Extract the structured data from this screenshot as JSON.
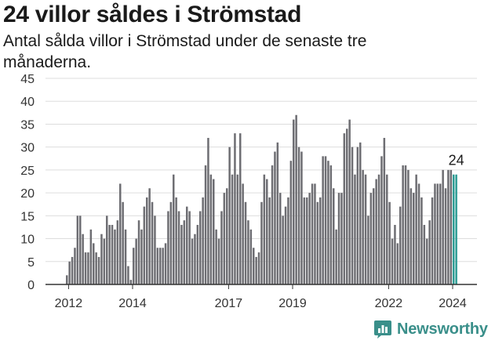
{
  "chart_data": {
    "type": "bar",
    "title": "24 villor såldes i Strömstad",
    "subtitle": "Antal sålda villor i Strömstad under de senaste tre månaderna.",
    "annotation": "24",
    "y_ticks": [
      0,
      5,
      10,
      15,
      20,
      25,
      30,
      35,
      40,
      45
    ],
    "ylim": [
      0,
      45
    ],
    "x_ticks": [
      {
        "label": "2012",
        "month_index": 1
      },
      {
        "label": "2014",
        "month_index": 25
      },
      {
        "label": "2017",
        "month_index": 61
      },
      {
        "label": "2019",
        "month_index": 85
      },
      {
        "label": "2022",
        "month_index": 121
      },
      {
        "label": "2024",
        "month_index": 145
      }
    ],
    "grid": true,
    "colors": {
      "bar": "#6e6e73",
      "highlight": "#2e9c94"
    },
    "highlight_last": 2,
    "values": [
      2,
      5,
      6,
      8,
      15,
      15,
      11,
      7,
      7,
      12,
      9,
      7,
      6,
      11,
      10,
      15,
      13,
      13,
      12,
      14,
      22,
      18,
      12,
      4,
      1,
      8,
      10,
      14,
      12,
      17,
      19,
      21,
      18,
      15,
      8,
      8,
      8,
      9,
      16,
      18,
      24,
      19,
      16,
      13,
      14,
      17,
      16,
      10,
      11,
      13,
      16,
      19,
      26,
      32,
      24,
      23,
      12,
      10,
      16,
      20,
      21,
      30,
      24,
      33,
      24,
      33,
      22,
      18,
      14,
      12,
      8,
      6,
      7,
      18,
      24,
      23,
      19,
      26,
      29,
      31,
      20,
      15,
      17,
      19,
      27,
      36,
      37,
      30,
      29,
      19,
      19,
      20,
      22,
      22,
      18,
      19,
      28,
      28,
      27,
      26,
      21,
      12,
      20,
      20,
      33,
      34,
      36,
      30,
      24,
      30,
      31,
      25,
      24,
      15,
      20,
      21,
      23,
      24,
      28,
      32,
      24,
      18,
      10,
      13,
      9,
      17,
      26,
      26,
      25,
      21,
      20,
      24,
      22,
      19,
      13,
      10,
      14,
      19,
      22,
      22,
      22,
      25,
      21,
      25,
      25,
      24,
      24
    ]
  },
  "brand": {
    "name": "Newsworthy",
    "icon": "newsworthy-logo-icon"
  }
}
